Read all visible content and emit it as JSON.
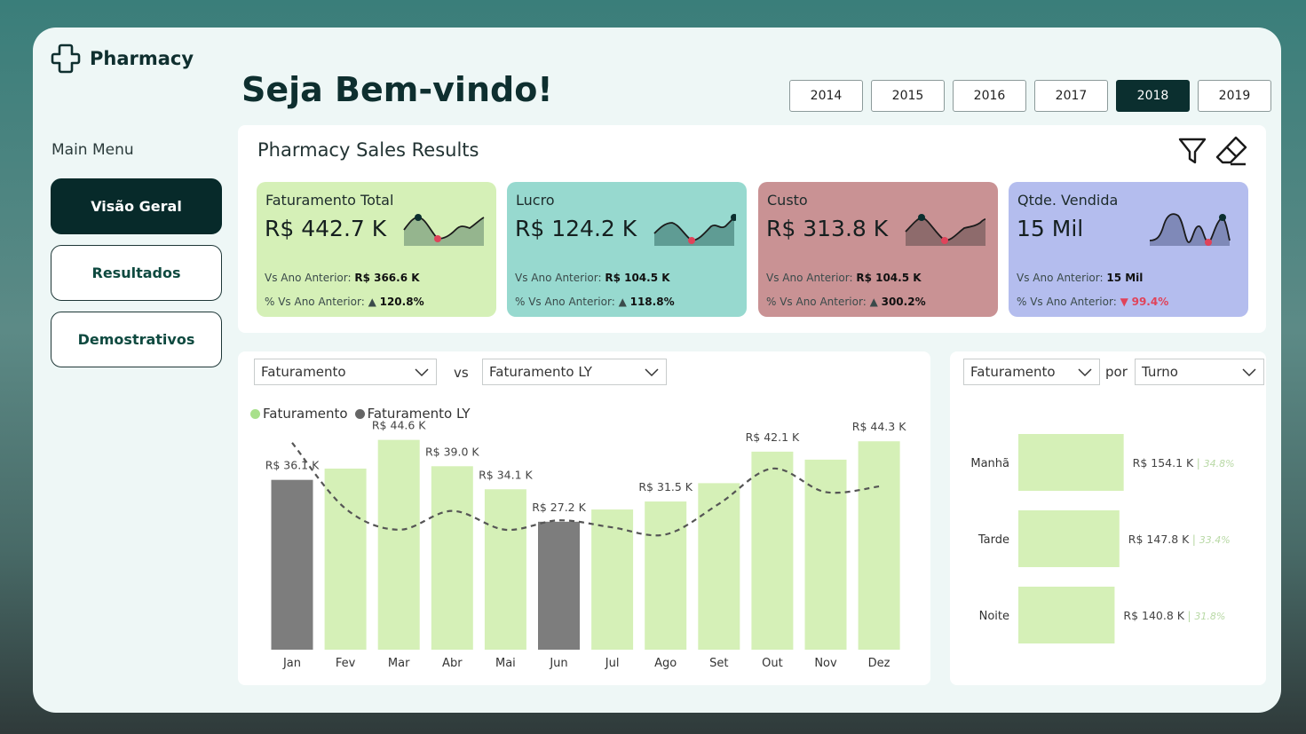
{
  "app": {
    "title": "Pharmacy",
    "welcome": "Seja Bem-vindo!"
  },
  "years": [
    "2014",
    "2015",
    "2016",
    "2017",
    "2018",
    "2019"
  ],
  "selected_year": "2018",
  "menu": {
    "label": "Main Menu",
    "items": [
      {
        "label": "Visão Geral",
        "active": true
      },
      {
        "label": "Resultados",
        "active": false
      },
      {
        "label": "Demostrativos",
        "active": false
      }
    ]
  },
  "kpi": {
    "title": "Pharmacy Sales Results",
    "cards": [
      {
        "name": "Faturamento Total",
        "value": "R$ 442.7 K",
        "prev_label": "Vs Ano Anterior: ",
        "prev_value": "R$ 366.6 K",
        "pct_label": "% Vs Ano Anterior: ",
        "pct_value": "120.8%",
        "trend": "up",
        "color": "#d5f0b7"
      },
      {
        "name": "Lucro",
        "value": "R$ 124.2 K",
        "prev_label": "Vs Ano Anterior: ",
        "prev_value": "R$ 104.5 K",
        "pct_label": "% Vs Ano Anterior: ",
        "pct_value": "118.8%",
        "trend": "up",
        "color": "#97d9cf"
      },
      {
        "name": "Custo",
        "value": "R$ 313.8 K",
        "prev_label": "Vs Ano Anterior: ",
        "prev_value": "R$ 104.5 K",
        "pct_label": "% Vs Ano Anterior: ",
        "pct_value": "300.2%",
        "trend": "up",
        "color": "#c99294"
      },
      {
        "name": "Qtde. Vendida",
        "value": "15 Mil",
        "prev_label": "Vs Ano Anterior: ",
        "prev_value": "15 Mil",
        "pct_label": "% Vs Ano Anterior: ",
        "pct_value": "99.4%",
        "trend": "down",
        "color": "#b4bdee"
      }
    ]
  },
  "monthly_chart": {
    "dropdown_metric": "Faturamento",
    "vs_label": "vs",
    "dropdown_compare": "Faturamento LY"
  },
  "turno_chart": {
    "dropdown_metric": "Faturamento",
    "por_label": "por",
    "dropdown_group": "Turno"
  },
  "chart_data": [
    {
      "type": "bar",
      "categories": [
        "Jan",
        "Fev",
        "Mar",
        "Abr",
        "Mai",
        "Jun",
        "Jul",
        "Ago",
        "Set",
        "Out",
        "Nov",
        "Dez"
      ],
      "series": [
        {
          "name": "Faturamento",
          "values": [
            36.1,
            38.5,
            44.6,
            39.0,
            34.1,
            27.2,
            29.8,
            31.5,
            35.4,
            42.1,
            40.4,
            44.3
          ]
        },
        {
          "name": "Faturamento LY",
          "type": "line",
          "values": [
            44.0,
            30.0,
            25.5,
            29.5,
            25.5,
            27.5,
            26.0,
            24.5,
            31.0,
            38.5,
            33.5,
            34.7
          ]
        }
      ],
      "data_labels": [
        "R$ 36.1 K",
        "",
        "R$ 44.6 K",
        "R$ 39.0 K",
        "R$ 34.1 K",
        "R$ 27.2 K",
        "",
        "R$ 31.5 K",
        "",
        "R$ 42.1 K",
        "",
        "R$ 44.3 K"
      ],
      "below_target_months": [
        "Jan",
        "Jun"
      ],
      "colors": {
        "above": "#d5f0b7",
        "below": "#7d7d7d",
        "line": "#555555"
      },
      "legend": [
        "Faturamento",
        "Faturamento LY"
      ],
      "legend_position": "top-left",
      "ylim": [
        0,
        50
      ],
      "grid": false
    },
    {
      "type": "bar",
      "orientation": "horizontal",
      "categories": [
        "Manhã",
        "Tarde",
        "Noite"
      ],
      "values": [
        154.1,
        147.8,
        140.8
      ],
      "value_labels": [
        "R$ 154.1 K",
        "R$ 147.8 K",
        "R$ 140.8 K"
      ],
      "pct_labels": [
        "34.8%",
        "33.4%",
        "31.8%"
      ],
      "xlim": [
        0,
        200
      ],
      "color": "#d5f0b7",
      "grid": false
    }
  ]
}
